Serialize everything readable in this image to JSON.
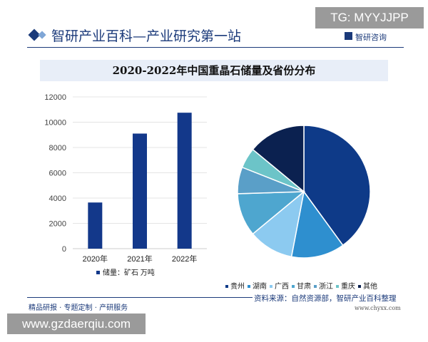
{
  "watermark_tag": "TG: MYYJJPP",
  "header": {
    "title": "智研产业百科—产业研究第一站",
    "brand": "智研咨询"
  },
  "chart_title": "2020-2022年中国重晶石储量及省份分布",
  "chart_data": [
    {
      "type": "bar",
      "categories": [
        "2020年",
        "2021年",
        "2022年"
      ],
      "values": [
        3650,
        9100,
        10750
      ],
      "ylim": [
        0,
        12000
      ],
      "yticks": [
        "0",
        "2000",
        "4000",
        "6000",
        "8000",
        "10000",
        "12000"
      ],
      "legend": "储量：矿石  万吨",
      "color": "#13388a",
      "grid": true
    },
    {
      "type": "pie",
      "labels": [
        "贵州",
        "湖南",
        "广西",
        "甘肃",
        "浙江",
        "重庆",
        "其他"
      ],
      "values": [
        40,
        13,
        11,
        10.5,
        6.5,
        5,
        14
      ],
      "colors": [
        "#0e3a88",
        "#2e8fcf",
        "#8ccaf0",
        "#4ea6cf",
        "#5a9fc8",
        "#6cc4c8",
        "#0b2150"
      ],
      "legend_position": "bottom"
    }
  ],
  "source": "资料来源：自然资源部，智研产业百科整理",
  "source_url": "www.chyxx.com",
  "footer": "精品研报 · 专题定制 · 产研服务",
  "site_tag": "www.gzdaerqiu.com"
}
